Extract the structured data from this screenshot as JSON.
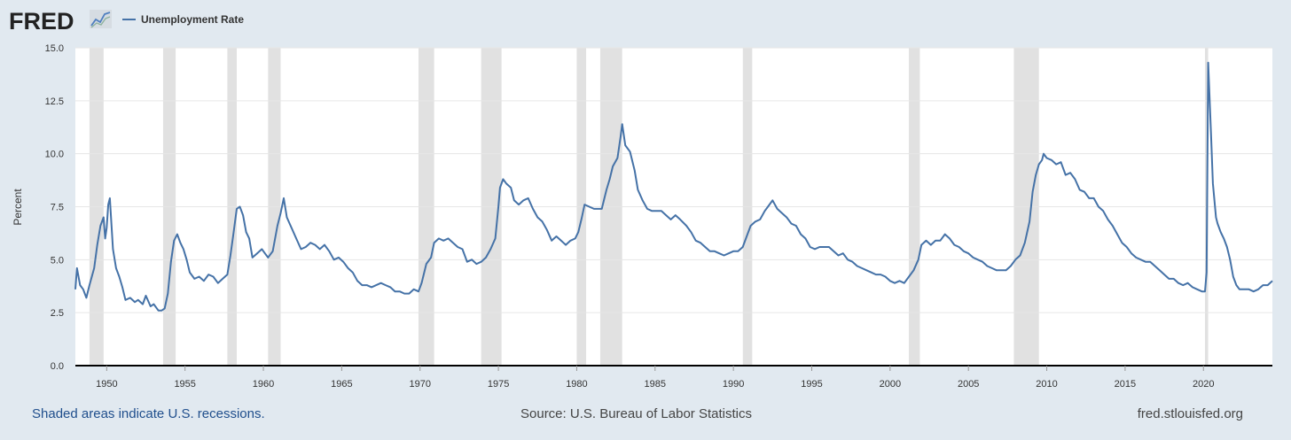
{
  "header": {
    "logo_text": "FRED",
    "logo_icon": "fred-chart-icon"
  },
  "footer": {
    "recession_note": "Shaded areas indicate U.S. recessions.",
    "source": "Source: U.S. Bureau of Labor Statistics",
    "site": "fred.stlouisfed.org"
  },
  "colors": {
    "background": "#e1e9f0",
    "plot_background": "#ffffff",
    "line": "#4572a7",
    "recession": "#e1e1e1",
    "footer_link": "#1f4e8c"
  },
  "chart_data": {
    "type": "line",
    "title": "",
    "xlabel": "",
    "ylabel": "Percent",
    "xlim": [
      1948.0,
      2024.4
    ],
    "ylim": [
      0,
      15
    ],
    "grid": true,
    "legend_position": "top-left",
    "x_ticks": [
      1950,
      1955,
      1960,
      1965,
      1970,
      1975,
      1980,
      1985,
      1990,
      1995,
      2000,
      2005,
      2010,
      2015,
      2020
    ],
    "y_ticks": [
      0.0,
      2.5,
      5.0,
      7.5,
      10.0,
      12.5,
      15.0
    ],
    "y_tick_labels": [
      "0.0",
      "2.5",
      "5.0",
      "7.5",
      "10.0",
      "12.5",
      "15.0"
    ],
    "recessions": [
      [
        1948.9,
        1949.8
      ],
      [
        1953.6,
        1954.4
      ],
      [
        1957.7,
        1958.3
      ],
      [
        1960.3,
        1961.1
      ],
      [
        1969.9,
        1970.9
      ],
      [
        1973.9,
        1975.2
      ],
      [
        1980.0,
        1980.6
      ],
      [
        1981.5,
        1982.9
      ],
      [
        1990.6,
        1991.2
      ],
      [
        2001.2,
        2001.9
      ],
      [
        2007.9,
        2009.5
      ],
      [
        2020.1,
        2020.3
      ]
    ],
    "series": [
      {
        "name": "Unemployment Rate",
        "points": [
          [
            1948.0,
            3.6
          ],
          [
            1948.1,
            4.6
          ],
          [
            1948.3,
            3.8
          ],
          [
            1948.5,
            3.6
          ],
          [
            1948.7,
            3.2
          ],
          [
            1948.9,
            3.8
          ],
          [
            1949.2,
            4.6
          ],
          [
            1949.4,
            5.7
          ],
          [
            1949.6,
            6.6
          ],
          [
            1949.8,
            7.0
          ],
          [
            1949.9,
            6.0
          ],
          [
            1950.0,
            6.5
          ],
          [
            1950.1,
            7.6
          ],
          [
            1950.2,
            7.9
          ],
          [
            1950.4,
            5.5
          ],
          [
            1950.6,
            4.6
          ],
          [
            1950.8,
            4.2
          ],
          [
            1951.0,
            3.7
          ],
          [
            1951.2,
            3.1
          ],
          [
            1951.5,
            3.2
          ],
          [
            1951.8,
            3.0
          ],
          [
            1952.0,
            3.1
          ],
          [
            1952.3,
            2.9
          ],
          [
            1952.5,
            3.3
          ],
          [
            1952.8,
            2.8
          ],
          [
            1953.0,
            2.9
          ],
          [
            1953.3,
            2.6
          ],
          [
            1953.5,
            2.6
          ],
          [
            1953.7,
            2.7
          ],
          [
            1953.9,
            3.4
          ],
          [
            1954.1,
            4.9
          ],
          [
            1954.3,
            5.9
          ],
          [
            1954.5,
            6.2
          ],
          [
            1954.7,
            5.8
          ],
          [
            1954.9,
            5.5
          ],
          [
            1955.1,
            5.0
          ],
          [
            1955.3,
            4.4
          ],
          [
            1955.6,
            4.1
          ],
          [
            1955.9,
            4.2
          ],
          [
            1956.2,
            4.0
          ],
          [
            1956.5,
            4.3
          ],
          [
            1956.8,
            4.2
          ],
          [
            1957.1,
            3.9
          ],
          [
            1957.4,
            4.1
          ],
          [
            1957.7,
            4.3
          ],
          [
            1957.9,
            5.2
          ],
          [
            1958.1,
            6.3
          ],
          [
            1958.3,
            7.4
          ],
          [
            1958.5,
            7.5
          ],
          [
            1958.7,
            7.1
          ],
          [
            1958.9,
            6.3
          ],
          [
            1959.1,
            6.0
          ],
          [
            1959.3,
            5.1
          ],
          [
            1959.6,
            5.3
          ],
          [
            1959.9,
            5.5
          ],
          [
            1960.1,
            5.3
          ],
          [
            1960.3,
            5.1
          ],
          [
            1960.6,
            5.4
          ],
          [
            1960.9,
            6.6
          ],
          [
            1961.1,
            7.2
          ],
          [
            1961.3,
            7.9
          ],
          [
            1961.5,
            7.0
          ],
          [
            1961.8,
            6.5
          ],
          [
            1962.1,
            6.0
          ],
          [
            1962.4,
            5.5
          ],
          [
            1962.7,
            5.6
          ],
          [
            1963.0,
            5.8
          ],
          [
            1963.3,
            5.7
          ],
          [
            1963.6,
            5.5
          ],
          [
            1963.9,
            5.7
          ],
          [
            1964.2,
            5.4
          ],
          [
            1964.5,
            5.0
          ],
          [
            1964.8,
            5.1
          ],
          [
            1965.1,
            4.9
          ],
          [
            1965.4,
            4.6
          ],
          [
            1965.7,
            4.4
          ],
          [
            1966.0,
            4.0
          ],
          [
            1966.3,
            3.8
          ],
          [
            1966.6,
            3.8
          ],
          [
            1966.9,
            3.7
          ],
          [
            1967.2,
            3.8
          ],
          [
            1967.5,
            3.9
          ],
          [
            1967.8,
            3.8
          ],
          [
            1968.1,
            3.7
          ],
          [
            1968.4,
            3.5
          ],
          [
            1968.7,
            3.5
          ],
          [
            1969.0,
            3.4
          ],
          [
            1969.3,
            3.4
          ],
          [
            1969.6,
            3.6
          ],
          [
            1969.9,
            3.5
          ],
          [
            1970.1,
            3.9
          ],
          [
            1970.4,
            4.8
          ],
          [
            1970.7,
            5.1
          ],
          [
            1970.9,
            5.8
          ],
          [
            1971.2,
            6.0
          ],
          [
            1971.5,
            5.9
          ],
          [
            1971.8,
            6.0
          ],
          [
            1972.1,
            5.8
          ],
          [
            1972.4,
            5.6
          ],
          [
            1972.7,
            5.5
          ],
          [
            1973.0,
            4.9
          ],
          [
            1973.3,
            5.0
          ],
          [
            1973.6,
            4.8
          ],
          [
            1973.9,
            4.9
          ],
          [
            1974.2,
            5.1
          ],
          [
            1974.5,
            5.5
          ],
          [
            1974.8,
            6.0
          ],
          [
            1975.0,
            7.5
          ],
          [
            1975.1,
            8.4
          ],
          [
            1975.3,
            8.8
          ],
          [
            1975.5,
            8.6
          ],
          [
            1975.8,
            8.4
          ],
          [
            1976.0,
            7.8
          ],
          [
            1976.3,
            7.6
          ],
          [
            1976.6,
            7.8
          ],
          [
            1976.9,
            7.9
          ],
          [
            1977.2,
            7.4
          ],
          [
            1977.5,
            7.0
          ],
          [
            1977.8,
            6.8
          ],
          [
            1978.1,
            6.4
          ],
          [
            1978.4,
            5.9
          ],
          [
            1978.7,
            6.1
          ],
          [
            1979.0,
            5.9
          ],
          [
            1979.3,
            5.7
          ],
          [
            1979.6,
            5.9
          ],
          [
            1979.9,
            6.0
          ],
          [
            1980.1,
            6.3
          ],
          [
            1980.3,
            6.9
          ],
          [
            1980.5,
            7.6
          ],
          [
            1980.8,
            7.5
          ],
          [
            1981.1,
            7.4
          ],
          [
            1981.4,
            7.4
          ],
          [
            1981.6,
            7.4
          ],
          [
            1981.9,
            8.3
          ],
          [
            1982.1,
            8.8
          ],
          [
            1982.3,
            9.4
          ],
          [
            1982.6,
            9.8
          ],
          [
            1982.8,
            10.8
          ],
          [
            1982.9,
            11.4
          ],
          [
            1983.1,
            10.4
          ],
          [
            1983.4,
            10.1
          ],
          [
            1983.7,
            9.2
          ],
          [
            1983.9,
            8.3
          ],
          [
            1984.2,
            7.8
          ],
          [
            1984.5,
            7.4
          ],
          [
            1984.8,
            7.3
          ],
          [
            1985.1,
            7.3
          ],
          [
            1985.4,
            7.3
          ],
          [
            1985.7,
            7.1
          ],
          [
            1986.0,
            6.9
          ],
          [
            1986.3,
            7.1
          ],
          [
            1986.6,
            6.9
          ],
          [
            1987.0,
            6.6
          ],
          [
            1987.3,
            6.3
          ],
          [
            1987.6,
            5.9
          ],
          [
            1987.9,
            5.8
          ],
          [
            1988.2,
            5.6
          ],
          [
            1988.5,
            5.4
          ],
          [
            1988.8,
            5.4
          ],
          [
            1989.1,
            5.3
          ],
          [
            1989.4,
            5.2
          ],
          [
            1989.7,
            5.3
          ],
          [
            1990.0,
            5.4
          ],
          [
            1990.3,
            5.4
          ],
          [
            1990.6,
            5.6
          ],
          [
            1990.9,
            6.2
          ],
          [
            1991.1,
            6.6
          ],
          [
            1991.4,
            6.8
          ],
          [
            1991.7,
            6.9
          ],
          [
            1992.0,
            7.3
          ],
          [
            1992.3,
            7.6
          ],
          [
            1992.5,
            7.8
          ],
          [
            1992.8,
            7.4
          ],
          [
            1993.1,
            7.2
          ],
          [
            1993.4,
            7.0
          ],
          [
            1993.7,
            6.7
          ],
          [
            1994.0,
            6.6
          ],
          [
            1994.3,
            6.2
          ],
          [
            1994.6,
            6.0
          ],
          [
            1994.9,
            5.6
          ],
          [
            1995.2,
            5.5
          ],
          [
            1995.5,
            5.6
          ],
          [
            1995.8,
            5.6
          ],
          [
            1996.1,
            5.6
          ],
          [
            1996.4,
            5.4
          ],
          [
            1996.7,
            5.2
          ],
          [
            1997.0,
            5.3
          ],
          [
            1997.3,
            5.0
          ],
          [
            1997.6,
            4.9
          ],
          [
            1997.9,
            4.7
          ],
          [
            1998.2,
            4.6
          ],
          [
            1998.5,
            4.5
          ],
          [
            1998.8,
            4.4
          ],
          [
            1999.1,
            4.3
          ],
          [
            1999.4,
            4.3
          ],
          [
            1999.7,
            4.2
          ],
          [
            2000.0,
            4.0
          ],
          [
            2000.3,
            3.9
          ],
          [
            2000.6,
            4.0
          ],
          [
            2000.9,
            3.9
          ],
          [
            2001.2,
            4.2
          ],
          [
            2001.5,
            4.5
          ],
          [
            2001.8,
            5.0
          ],
          [
            2002.0,
            5.7
          ],
          [
            2002.3,
            5.9
          ],
          [
            2002.6,
            5.7
          ],
          [
            2002.9,
            5.9
          ],
          [
            2003.2,
            5.9
          ],
          [
            2003.5,
            6.2
          ],
          [
            2003.8,
            6.0
          ],
          [
            2004.1,
            5.7
          ],
          [
            2004.4,
            5.6
          ],
          [
            2004.7,
            5.4
          ],
          [
            2005.0,
            5.3
          ],
          [
            2005.3,
            5.1
          ],
          [
            2005.6,
            5.0
          ],
          [
            2005.9,
            4.9
          ],
          [
            2006.2,
            4.7
          ],
          [
            2006.5,
            4.6
          ],
          [
            2006.8,
            4.5
          ],
          [
            2007.1,
            4.5
          ],
          [
            2007.4,
            4.5
          ],
          [
            2007.7,
            4.7
          ],
          [
            2008.0,
            5.0
          ],
          [
            2008.3,
            5.2
          ],
          [
            2008.6,
            5.8
          ],
          [
            2008.9,
            6.8
          ],
          [
            2009.1,
            8.2
          ],
          [
            2009.3,
            9.0
          ],
          [
            2009.5,
            9.5
          ],
          [
            2009.7,
            9.7
          ],
          [
            2009.8,
            10.0
          ],
          [
            2010.0,
            9.8
          ],
          [
            2010.3,
            9.7
          ],
          [
            2010.6,
            9.5
          ],
          [
            2010.9,
            9.6
          ],
          [
            2011.2,
            9.0
          ],
          [
            2011.5,
            9.1
          ],
          [
            2011.8,
            8.8
          ],
          [
            2012.1,
            8.3
          ],
          [
            2012.4,
            8.2
          ],
          [
            2012.7,
            7.9
          ],
          [
            2013.0,
            7.9
          ],
          [
            2013.3,
            7.5
          ],
          [
            2013.6,
            7.3
          ],
          [
            2013.9,
            6.9
          ],
          [
            2014.2,
            6.6
          ],
          [
            2014.5,
            6.2
          ],
          [
            2014.8,
            5.8
          ],
          [
            2015.1,
            5.6
          ],
          [
            2015.4,
            5.3
          ],
          [
            2015.7,
            5.1
          ],
          [
            2016.0,
            5.0
          ],
          [
            2016.3,
            4.9
          ],
          [
            2016.6,
            4.9
          ],
          [
            2016.9,
            4.7
          ],
          [
            2017.2,
            4.5
          ],
          [
            2017.5,
            4.3
          ],
          [
            2017.8,
            4.1
          ],
          [
            2018.1,
            4.1
          ],
          [
            2018.4,
            3.9
          ],
          [
            2018.7,
            3.8
          ],
          [
            2019.0,
            3.9
          ],
          [
            2019.3,
            3.7
          ],
          [
            2019.6,
            3.6
          ],
          [
            2019.9,
            3.5
          ],
          [
            2020.1,
            3.5
          ],
          [
            2020.2,
            4.4
          ],
          [
            2020.3,
            14.3
          ],
          [
            2020.4,
            12.5
          ],
          [
            2020.5,
            10.6
          ],
          [
            2020.6,
            8.6
          ],
          [
            2020.8,
            7.0
          ],
          [
            2020.9,
            6.7
          ],
          [
            2021.1,
            6.3
          ],
          [
            2021.3,
            6.0
          ],
          [
            2021.5,
            5.6
          ],
          [
            2021.7,
            5.0
          ],
          [
            2021.9,
            4.2
          ],
          [
            2022.1,
            3.8
          ],
          [
            2022.3,
            3.6
          ],
          [
            2022.6,
            3.6
          ],
          [
            2022.9,
            3.6
          ],
          [
            2023.2,
            3.5
          ],
          [
            2023.5,
            3.6
          ],
          [
            2023.8,
            3.8
          ],
          [
            2024.1,
            3.8
          ],
          [
            2024.4,
            4.0
          ]
        ]
      }
    ]
  }
}
